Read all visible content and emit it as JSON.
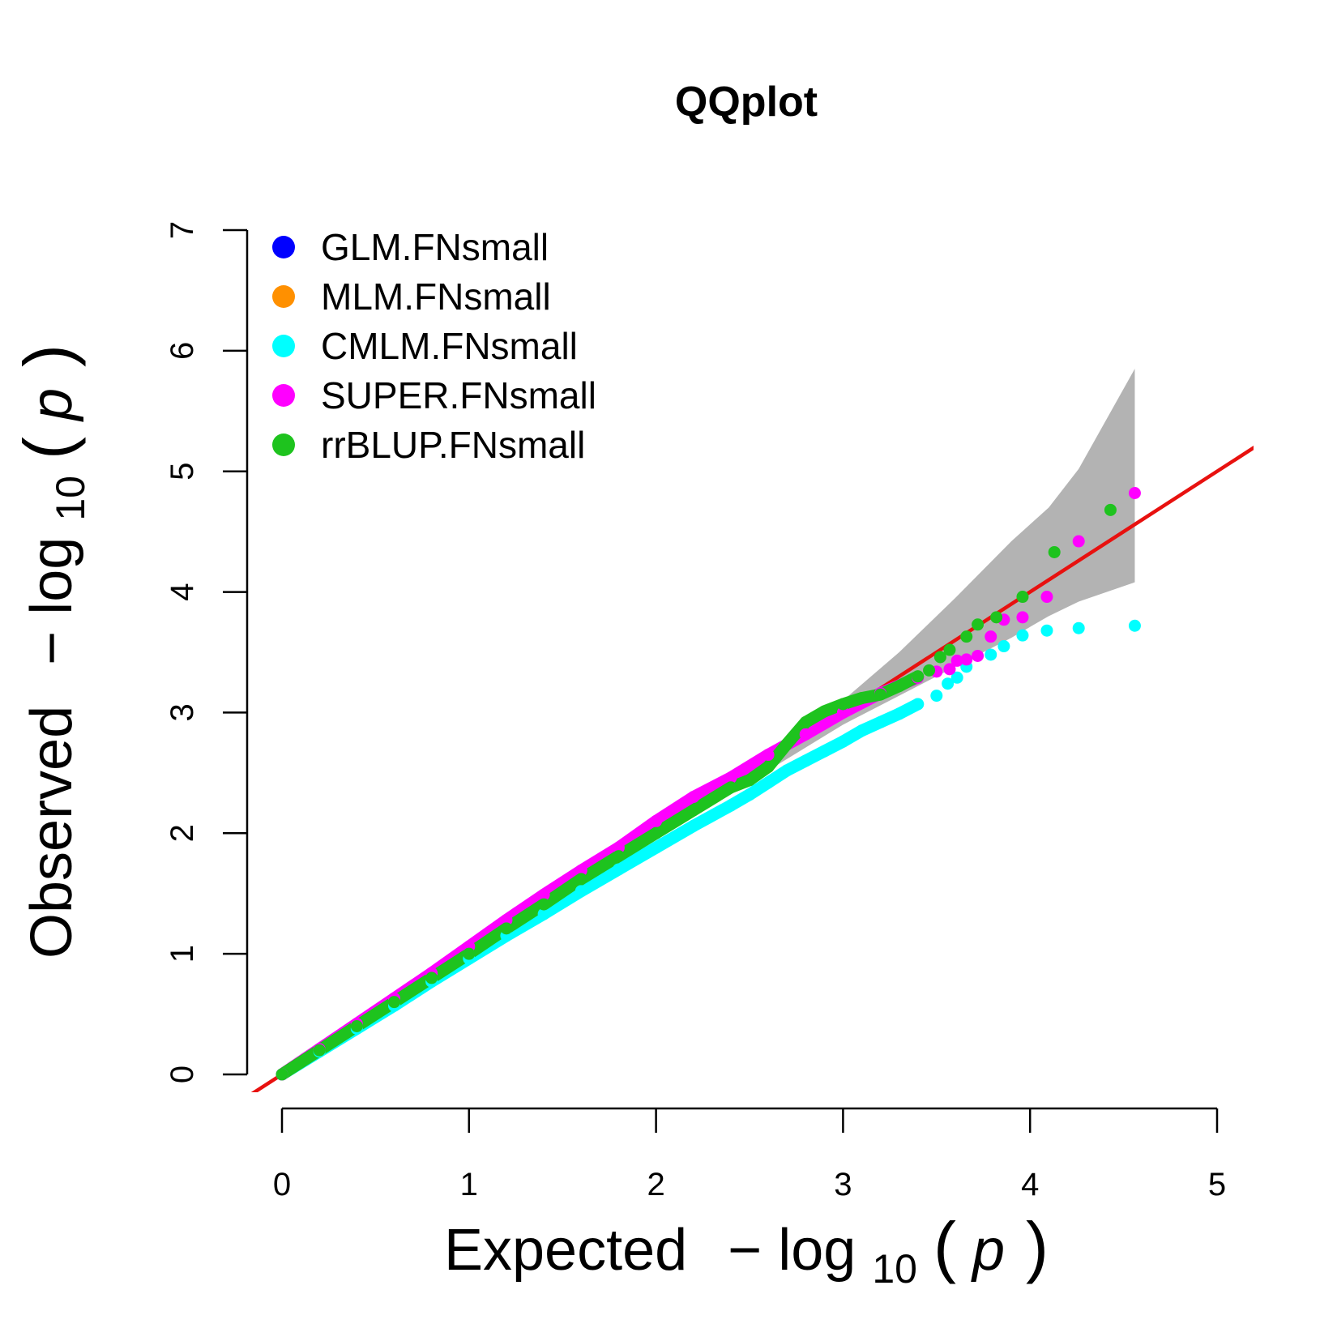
{
  "chart_data": {
    "type": "scatter",
    "title": "QQplot",
    "xlabel": {
      "prefix": "Expected",
      "minus": "−",
      "log": "log",
      "sub": "10",
      "open": "(",
      "p": "p",
      "close": ")"
    },
    "ylabel": {
      "prefix": "Observed",
      "minus": "−",
      "log": "log",
      "sub": "10",
      "open": "(",
      "p": "p",
      "close": ")"
    },
    "xlim": [
      0,
      5
    ],
    "ylim": [
      0,
      7
    ],
    "x_ticks": [
      "0",
      "1",
      "2",
      "3",
      "4",
      "5"
    ],
    "y_ticks": [
      "0",
      "1",
      "2",
      "3",
      "4",
      "5",
      "6",
      "7"
    ],
    "grid": false,
    "legend_position": "top-left",
    "reference_line": {
      "color": "#e8110f",
      "slope": 1,
      "intercept": 0
    },
    "confidence_band": {
      "color": "#b3b3b3",
      "x": [
        2.6,
        3.0,
        3.3,
        3.6,
        3.9,
        4.1,
        4.26,
        4.56
      ],
      "upper": [
        2.68,
        3.1,
        3.5,
        3.95,
        4.42,
        4.7,
        5.02,
        5.85
      ],
      "lower": [
        2.52,
        2.9,
        3.14,
        3.38,
        3.62,
        3.8,
        3.92,
        4.08
      ]
    },
    "series": [
      {
        "name": "GLM.FNsmall",
        "color": "#0000ff",
        "x": [],
        "y": []
      },
      {
        "name": "MLM.FNsmall",
        "color": "#ff9000",
        "x": [],
        "y": []
      },
      {
        "name": "CMLM.FNsmall",
        "color": "#00ffff",
        "x": [
          0,
          0.2,
          0.4,
          0.6,
          0.8,
          1.0,
          1.2,
          1.4,
          1.6,
          1.8,
          2.0,
          2.2,
          2.4,
          2.5,
          2.6,
          2.7,
          2.8,
          2.9,
          3.0,
          3.1,
          3.2,
          3.3,
          3.4,
          3.5,
          3.56,
          3.61,
          3.66,
          3.79,
          3.86,
          3.96,
          4.09,
          4.26,
          4.56
        ],
        "y": [
          0,
          0.19,
          0.38,
          0.57,
          0.77,
          0.96,
          1.15,
          1.33,
          1.52,
          1.7,
          1.88,
          2.06,
          2.23,
          2.32,
          2.42,
          2.52,
          2.6,
          2.68,
          2.76,
          2.85,
          2.92,
          2.99,
          3.07,
          3.14,
          3.24,
          3.29,
          3.38,
          3.48,
          3.55,
          3.64,
          3.68,
          3.7,
          3.72
        ]
      },
      {
        "name": "SUPER.FNsmall",
        "color": "#ff00ff",
        "x": [
          0,
          0.2,
          0.4,
          0.6,
          0.8,
          1.0,
          1.2,
          1.4,
          1.6,
          1.8,
          2.0,
          2.2,
          2.4,
          2.6,
          2.8,
          3.0,
          3.2,
          3.4,
          3.5,
          3.57,
          3.61,
          3.66,
          3.72,
          3.79,
          3.86,
          3.96,
          4.09,
          4.26,
          4.56
        ],
        "y": [
          0,
          0.21,
          0.42,
          0.63,
          0.84,
          1.06,
          1.28,
          1.49,
          1.69,
          1.88,
          2.1,
          2.3,
          2.46,
          2.65,
          2.82,
          3.0,
          3.16,
          3.29,
          3.34,
          3.36,
          3.43,
          3.44,
          3.47,
          3.63,
          3.77,
          3.79,
          3.96,
          4.42,
          4.82
        ]
      },
      {
        "name": "rrBLUP.FNsmall",
        "color": "#1ec31e",
        "x": [
          0,
          0.2,
          0.4,
          0.6,
          0.8,
          1.0,
          1.2,
          1.4,
          1.6,
          1.8,
          2.0,
          2.2,
          2.4,
          2.5,
          2.6,
          2.7,
          2.8,
          2.9,
          3.0,
          3.1,
          3.2,
          3.3,
          3.4,
          3.46,
          3.52,
          3.57,
          3.66,
          3.72,
          3.82,
          3.96,
          4.13,
          4.43
        ],
        "y": [
          0,
          0.2,
          0.4,
          0.6,
          0.8,
          1.0,
          1.21,
          1.41,
          1.62,
          1.81,
          2.0,
          2.19,
          2.38,
          2.44,
          2.55,
          2.74,
          2.92,
          3.01,
          3.07,
          3.12,
          3.15,
          3.22,
          3.3,
          3.35,
          3.46,
          3.52,
          3.63,
          3.73,
          3.79,
          3.96,
          4.33,
          4.68
        ]
      }
    ]
  }
}
